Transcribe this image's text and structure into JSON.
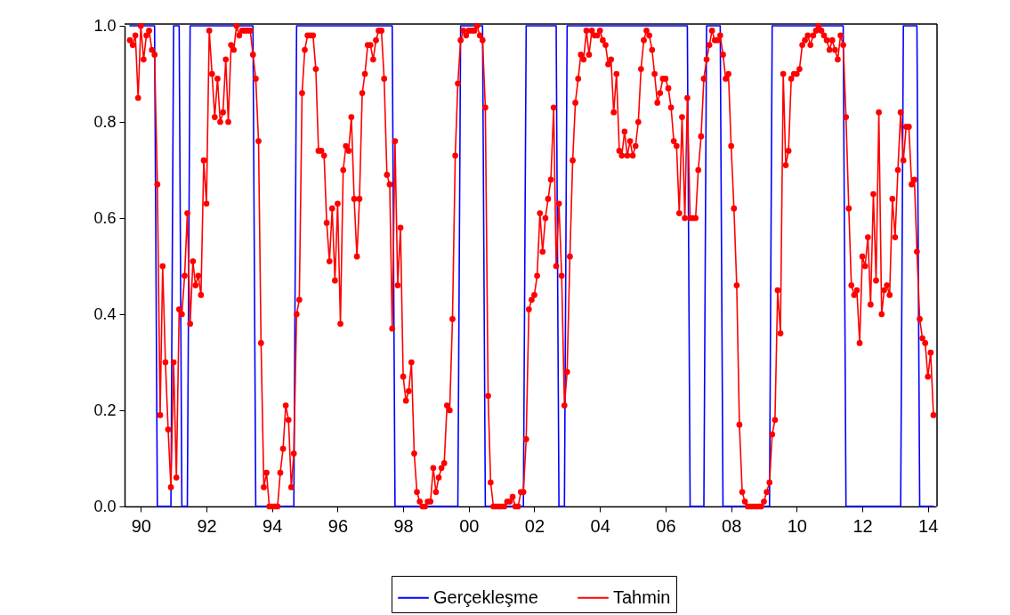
{
  "chart_data": {
    "type": "line",
    "xlim": [
      "1990-01",
      "2014-10"
    ],
    "ylim": [
      0,
      1
    ],
    "xticks": [
      {
        "value": "1990-07",
        "label": "90"
      },
      {
        "value": "1992-07",
        "label": "92"
      },
      {
        "value": "1994-07",
        "label": "94"
      },
      {
        "value": "1996-07",
        "label": "96"
      },
      {
        "value": "1998-07",
        "label": "98"
      },
      {
        "value": "2000-07",
        "label": "00"
      },
      {
        "value": "2002-07",
        "label": "02"
      },
      {
        "value": "2004-07",
        "label": "04"
      },
      {
        "value": "2006-07",
        "label": "06"
      },
      {
        "value": "2008-07",
        "label": "08"
      },
      {
        "value": "2010-07",
        "label": "10"
      },
      {
        "value": "2012-07",
        "label": "12"
      },
      {
        "value": "2014-07",
        "label": "14"
      }
    ],
    "yticks": [
      {
        "value": 0,
        "label": "0.0"
      },
      {
        "value": 0.2,
        "label": "0.2"
      },
      {
        "value": 0.4,
        "label": "0.4"
      },
      {
        "value": 0.6,
        "label": "0.6"
      },
      {
        "value": 0.8,
        "label": "0.8"
      },
      {
        "value": 1,
        "label": "1.0"
      }
    ],
    "legend": "bottom",
    "line_style": "solid",
    "series": [
      {
        "name": "Gerçekleşme",
        "color": "#0000ff",
        "marker": "none",
        "x": [
          "1990-03",
          "1990-12",
          "1991-01",
          "1991-06",
          "1991-07",
          "1991-09",
          "1991-10",
          "1991-12",
          "1992-01",
          "1993-12",
          "1994-01",
          "1995-03",
          "1995-04",
          "1998-03",
          "1998-04",
          "2000-03",
          "2000-04",
          "2000-12",
          "2001-01",
          "2002-03",
          "2002-04",
          "2003-03",
          "2003-04",
          "2003-06",
          "2003-07",
          "2007-03",
          "2007-04",
          "2007-09",
          "2007-10",
          "2008-03",
          "2008-04",
          "2009-09",
          "2009-10",
          "2011-12",
          "2012-01",
          "2013-09",
          "2013-10",
          "2014-03",
          "2014-04",
          "2014-09"
        ],
        "values": [
          1,
          1,
          0,
          0,
          1,
          1,
          0,
          0,
          1,
          1,
          0,
          0,
          1,
          1,
          0,
          0,
          1,
          1,
          0,
          0,
          1,
          1,
          0,
          0,
          1,
          1,
          0,
          0,
          1,
          1,
          0,
          0,
          1,
          1,
          0,
          0,
          1,
          1,
          0,
          0
        ]
      },
      {
        "name": "Tahmin",
        "color": "#ff0000",
        "marker": "circle",
        "x": [
          "1990-03",
          "1990-04",
          "1990-05",
          "1990-06",
          "1990-07",
          "1990-08",
          "1990-09",
          "1990-10",
          "1990-11",
          "1990-12",
          "1991-01",
          "1991-02",
          "1991-03",
          "1991-04",
          "1991-05",
          "1991-06",
          "1991-07",
          "1991-08",
          "1991-09",
          "1991-10",
          "1991-11",
          "1991-12",
          "1992-01",
          "1992-02",
          "1992-03",
          "1992-04",
          "1992-05",
          "1992-06",
          "1992-07",
          "1992-08",
          "1992-09",
          "1992-10",
          "1992-11",
          "1992-12",
          "1993-01",
          "1993-02",
          "1993-03",
          "1993-04",
          "1993-05",
          "1993-06",
          "1993-07",
          "1993-08",
          "1993-09",
          "1993-10",
          "1993-11",
          "1993-12",
          "1994-01",
          "1994-02",
          "1994-03",
          "1994-04",
          "1994-05",
          "1994-06",
          "1994-07",
          "1994-08",
          "1994-09",
          "1994-10",
          "1994-11",
          "1994-12",
          "1995-01",
          "1995-02",
          "1995-03",
          "1995-04",
          "1995-05",
          "1995-06",
          "1995-07",
          "1995-08",
          "1995-09",
          "1995-10",
          "1995-11",
          "1995-12",
          "1996-01",
          "1996-02",
          "1996-03",
          "1996-04",
          "1996-05",
          "1996-06",
          "1996-07",
          "1996-08",
          "1996-09",
          "1996-10",
          "1996-11",
          "1996-12",
          "1997-01",
          "1997-02",
          "1997-03",
          "1997-04",
          "1997-05",
          "1997-06",
          "1997-07",
          "1997-08",
          "1997-09",
          "1997-10",
          "1997-11",
          "1997-12",
          "1998-01",
          "1998-02",
          "1998-03",
          "1998-04",
          "1998-05",
          "1998-06",
          "1998-07",
          "1998-08",
          "1998-09",
          "1998-10",
          "1998-11",
          "1998-12",
          "1999-01",
          "1999-02",
          "1999-03",
          "1999-04",
          "1999-05",
          "1999-06",
          "1999-07",
          "1999-08",
          "1999-09",
          "1999-10",
          "1999-11",
          "1999-12",
          "2000-01",
          "2000-02",
          "2000-03",
          "2000-04",
          "2000-05",
          "2000-06",
          "2000-07",
          "2000-08",
          "2000-09",
          "2000-10",
          "2000-11",
          "2000-12",
          "2001-01",
          "2001-02",
          "2001-03",
          "2001-04",
          "2001-05",
          "2001-06",
          "2001-07",
          "2001-08",
          "2001-09",
          "2001-10",
          "2001-11",
          "2001-12",
          "2002-01",
          "2002-02",
          "2002-03",
          "2002-04",
          "2002-05",
          "2002-06",
          "2002-07",
          "2002-08",
          "2002-09",
          "2002-10",
          "2002-11",
          "2002-12",
          "2003-01",
          "2003-02",
          "2003-03",
          "2003-04",
          "2003-05",
          "2003-06",
          "2003-07",
          "2003-08",
          "2003-09",
          "2003-10",
          "2003-11",
          "2003-12",
          "2004-01",
          "2004-02",
          "2004-03",
          "2004-04",
          "2004-05",
          "2004-06",
          "2004-07",
          "2004-08",
          "2004-09",
          "2004-10",
          "2004-11",
          "2004-12",
          "2005-01",
          "2005-02",
          "2005-03",
          "2005-04",
          "2005-05",
          "2005-06",
          "2005-07",
          "2005-08",
          "2005-09",
          "2005-10",
          "2005-11",
          "2005-12",
          "2006-01",
          "2006-02",
          "2006-03",
          "2006-04",
          "2006-05",
          "2006-06",
          "2006-07",
          "2006-08",
          "2006-09",
          "2006-10",
          "2006-11",
          "2006-12",
          "2007-01",
          "2007-02",
          "2007-03",
          "2007-04",
          "2007-05",
          "2007-06",
          "2007-07",
          "2007-08",
          "2007-09",
          "2007-10",
          "2007-11",
          "2007-12",
          "2008-01",
          "2008-02",
          "2008-03",
          "2008-04",
          "2008-05",
          "2008-06",
          "2008-07",
          "2008-08",
          "2008-09",
          "2008-10",
          "2008-11",
          "2008-12",
          "2009-01",
          "2009-02",
          "2009-03",
          "2009-04",
          "2009-05",
          "2009-06",
          "2009-07",
          "2009-08",
          "2009-09",
          "2009-10",
          "2009-11",
          "2009-12",
          "2010-01",
          "2010-02",
          "2010-03",
          "2010-04",
          "2010-05",
          "2010-06",
          "2010-07",
          "2010-08",
          "2010-09",
          "2010-10",
          "2010-11",
          "2010-12",
          "2011-01",
          "2011-02",
          "2011-03",
          "2011-04",
          "2011-05",
          "2011-06",
          "2011-07",
          "2011-08",
          "2011-09",
          "2011-10",
          "2011-11",
          "2011-12",
          "2012-01",
          "2012-02",
          "2012-03",
          "2012-04",
          "2012-05",
          "2012-06",
          "2012-07",
          "2012-08",
          "2012-09",
          "2012-10",
          "2012-11",
          "2012-12",
          "2013-01",
          "2013-02",
          "2013-03",
          "2013-04",
          "2013-05",
          "2013-06",
          "2013-07",
          "2013-08",
          "2013-09",
          "2013-10",
          "2013-11",
          "2013-12",
          "2014-01",
          "2014-02",
          "2014-03",
          "2014-04",
          "2014-05",
          "2014-06",
          "2014-07",
          "2014-08",
          "2014-09"
        ],
        "values": [
          0.97,
          0.96,
          0.98,
          0.85,
          1.0,
          0.93,
          0.98,
          0.99,
          0.95,
          0.94,
          0.67,
          0.19,
          0.5,
          0.3,
          0.16,
          0.04,
          0.3,
          0.06,
          0.41,
          0.4,
          0.48,
          0.61,
          0.38,
          0.51,
          0.46,
          0.48,
          0.44,
          0.72,
          0.63,
          0.99,
          0.9,
          0.81,
          0.89,
          0.8,
          0.82,
          0.93,
          0.8,
          0.96,
          0.95,
          1.0,
          0.98,
          0.99,
          0.99,
          0.99,
          0.99,
          0.94,
          0.89,
          0.76,
          0.34,
          0.04,
          0.07,
          0.0,
          0.0,
          0.0,
          0.0,
          0.07,
          0.12,
          0.21,
          0.18,
          0.04,
          0.11,
          0.4,
          0.43,
          0.86,
          0.95,
          0.98,
          0.98,
          0.98,
          0.91,
          0.74,
          0.74,
          0.73,
          0.59,
          0.51,
          0.62,
          0.47,
          0.63,
          0.38,
          0.7,
          0.75,
          0.74,
          0.81,
          0.64,
          0.52,
          0.64,
          0.86,
          0.9,
          0.96,
          0.96,
          0.93,
          0.97,
          0.99,
          0.99,
          0.89,
          0.69,
          0.67,
          0.37,
          0.76,
          0.46,
          0.58,
          0.27,
          0.22,
          0.24,
          0.3,
          0.11,
          0.03,
          0.01,
          0.0,
          0.0,
          0.01,
          0.01,
          0.08,
          0.03,
          0.06,
          0.08,
          0.09,
          0.21,
          0.2,
          0.39,
          0.73,
          0.88,
          0.97,
          0.99,
          0.98,
          0.99,
          0.99,
          0.99,
          1.0,
          0.98,
          0.97,
          0.83,
          0.23,
          0.05,
          0.0,
          0.0,
          0.0,
          0.0,
          0.0,
          0.01,
          0.01,
          0.02,
          0.0,
          0.0,
          0.03,
          0.03,
          0.14,
          0.41,
          0.43,
          0.44,
          0.48,
          0.61,
          0.53,
          0.6,
          0.64,
          0.68,
          0.83,
          0.5,
          0.63,
          0.48,
          0.21,
          0.28,
          0.52,
          0.72,
          0.84,
          0.89,
          0.94,
          0.93,
          0.99,
          0.94,
          0.99,
          0.98,
          0.98,
          0.99,
          0.97,
          0.96,
          0.92,
          0.93,
          0.82,
          0.9,
          0.74,
          0.73,
          0.78,
          0.73,
          0.76,
          0.73,
          0.75,
          0.8,
          0.91,
          0.97,
          0.99,
          0.98,
          0.95,
          0.9,
          0.84,
          0.86,
          0.89,
          0.89,
          0.87,
          0.83,
          0.76,
          0.75,
          0.61,
          0.81,
          0.6,
          0.85,
          0.6,
          0.6,
          0.6,
          0.7,
          0.77,
          0.89,
          0.93,
          0.96,
          0.99,
          0.97,
          0.97,
          0.98,
          0.94,
          0.89,
          0.9,
          0.75,
          0.62,
          0.46,
          0.17,
          0.03,
          0.01,
          0.0,
          0.0,
          0.0,
          0.0,
          0.0,
          0.0,
          0.01,
          0.03,
          0.05,
          0.15,
          0.18,
          0.45,
          0.36,
          0.9,
          0.71,
          0.74,
          0.89,
          0.9,
          0.9,
          0.91,
          0.96,
          0.97,
          0.98,
          0.96,
          0.98,
          0.99,
          1.0,
          0.99,
          0.98,
          0.97,
          0.95,
          0.97,
          0.95,
          0.93,
          0.98,
          0.96,
          0.81,
          0.62,
          0.46,
          0.44,
          0.45,
          0.34,
          0.52,
          0.5,
          0.56,
          0.42,
          0.65,
          0.47,
          0.82,
          0.4,
          0.45,
          0.46,
          0.44,
          0.64,
          0.56,
          0.7,
          0.82,
          0.72,
          0.79,
          0.79,
          0.67,
          0.68,
          0.53,
          0.39,
          0.35,
          0.34,
          0.27,
          0.32,
          0.19
        ]
      }
    ]
  }
}
